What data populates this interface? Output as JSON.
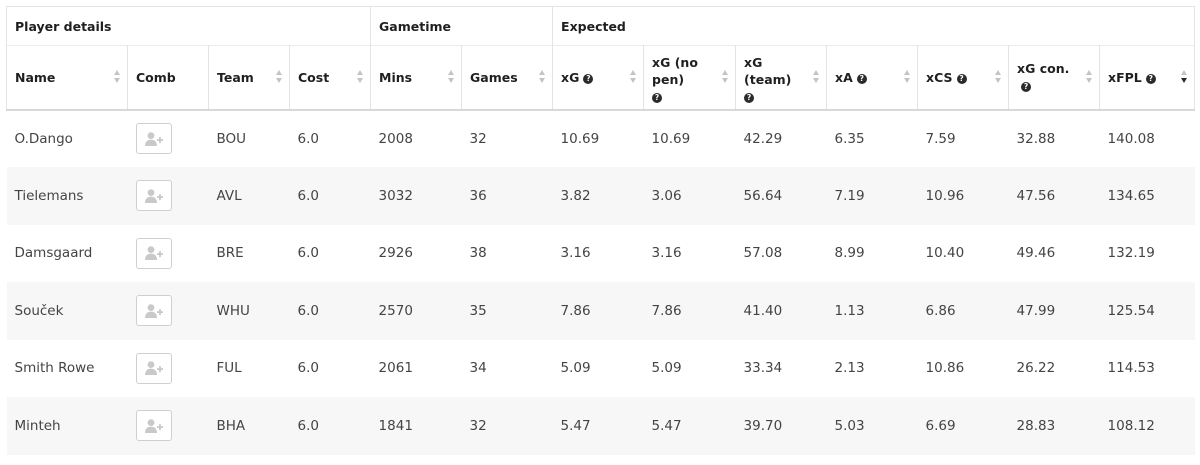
{
  "groups": {
    "player_details": "Player details",
    "gametime": "Gametime",
    "expected": "Expected"
  },
  "columns": {
    "name": "Name",
    "comb": "Comb",
    "team": "Team",
    "cost": "Cost",
    "mins": "Mins",
    "games": "Games",
    "xg": "xG",
    "xg_no_pen": "xG (no pen)",
    "xg_team": "xG (team)",
    "xa": "xA",
    "xcs": "xCS",
    "xg_con": "xG con.",
    "xfpl": "xFPL"
  },
  "help_icon_glyph": "?",
  "icons": {
    "help": "question-circle-icon",
    "add_user": "add-user-icon",
    "sort": "sort-arrows-icon"
  },
  "sorted_column": "xfpl",
  "sort_direction": "descending",
  "rows": [
    {
      "name": "O.Dango",
      "team": "BOU",
      "cost": "6.0",
      "mins": "2008",
      "games": "32",
      "xg": "10.69",
      "xg_no_pen": "10.69",
      "xg_team": "42.29",
      "xa": "6.35",
      "xcs": "7.59",
      "xg_con": "32.88",
      "xfpl": "140.08"
    },
    {
      "name": "Tielemans",
      "team": "AVL",
      "cost": "6.0",
      "mins": "3032",
      "games": "36",
      "xg": "3.82",
      "xg_no_pen": "3.06",
      "xg_team": "56.64",
      "xa": "7.19",
      "xcs": "10.96",
      "xg_con": "47.56",
      "xfpl": "134.65"
    },
    {
      "name": "Damsgaard",
      "team": "BRE",
      "cost": "6.0",
      "mins": "2926",
      "games": "38",
      "xg": "3.16",
      "xg_no_pen": "3.16",
      "xg_team": "57.08",
      "xa": "8.99",
      "xcs": "10.40",
      "xg_con": "49.46",
      "xfpl": "132.19"
    },
    {
      "name": "Souček",
      "team": "WHU",
      "cost": "6.0",
      "mins": "2570",
      "games": "35",
      "xg": "7.86",
      "xg_no_pen": "7.86",
      "xg_team": "41.40",
      "xa": "1.13",
      "xcs": "6.86",
      "xg_con": "47.99",
      "xfpl": "125.54"
    },
    {
      "name": "Smith Rowe",
      "team": "FUL",
      "cost": "6.0",
      "mins": "2061",
      "games": "34",
      "xg": "5.09",
      "xg_no_pen": "5.09",
      "xg_team": "33.34",
      "xa": "2.13",
      "xcs": "10.86",
      "xg_con": "26.22",
      "xfpl": "114.53"
    },
    {
      "name": "Minteh",
      "team": "BHA",
      "cost": "6.0",
      "mins": "1841",
      "games": "32",
      "xg": "5.47",
      "xg_no_pen": "5.47",
      "xg_team": "39.70",
      "xa": "5.03",
      "xcs": "6.69",
      "xg_con": "28.83",
      "xfpl": "108.12"
    }
  ]
}
